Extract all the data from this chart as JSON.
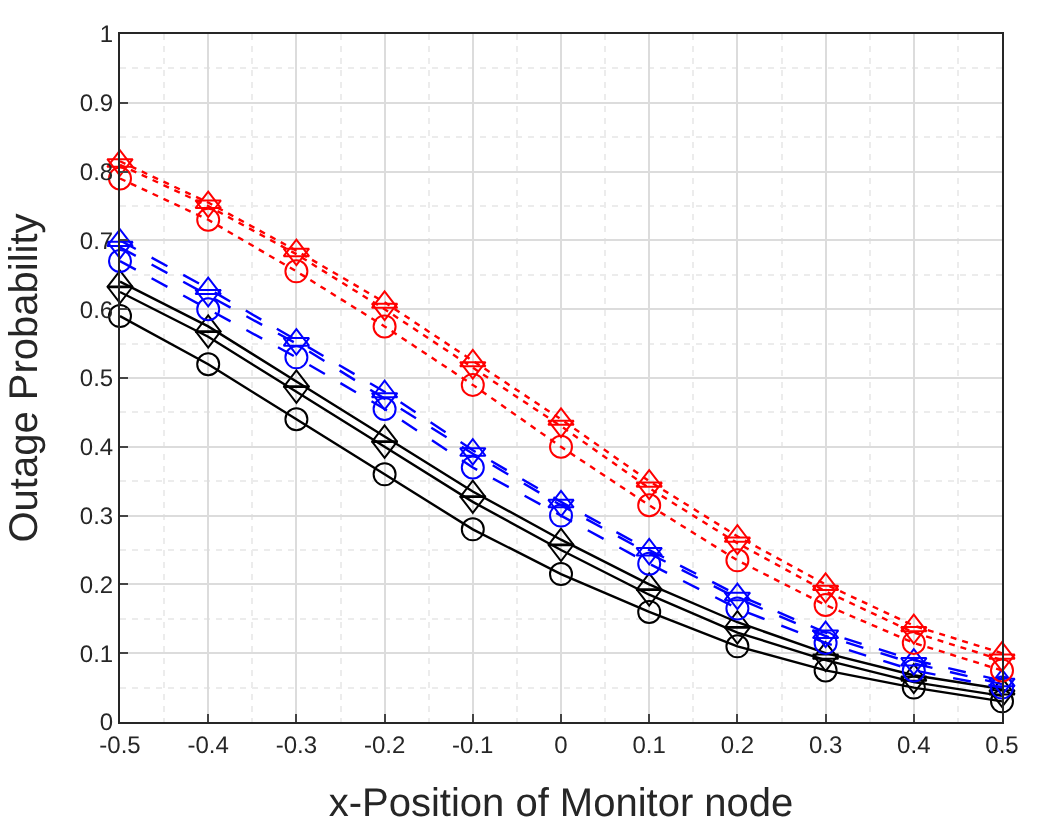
{
  "chart_data": {
    "type": "line",
    "xlabel": "x-Position of Monitor node",
    "ylabel": "Outage Probability",
    "x": [
      -0.5,
      -0.4,
      -0.3,
      -0.2,
      -0.1,
      0,
      0.1,
      0.2,
      0.3,
      0.4,
      0.5
    ],
    "xlim": [
      -0.5,
      0.5
    ],
    "xticks": [
      -0.5,
      -0.4,
      -0.3,
      -0.2,
      -0.1,
      0,
      0.1,
      0.2,
      0.3,
      0.4,
      0.5
    ],
    "ylim": [
      0,
      1
    ],
    "yticks": [
      0,
      0.1,
      0.2,
      0.3,
      0.4,
      0.5,
      0.6,
      0.7,
      0.8,
      0.9,
      1
    ],
    "grid": true,
    "series": [
      {
        "color": "#000000",
        "line_style": "solid",
        "marker": "circle",
        "values": [
          0.59,
          0.52,
          0.44,
          0.36,
          0.28,
          0.215,
          0.16,
          0.11,
          0.075,
          0.05,
          0.03
        ]
      },
      {
        "color": "#000000",
        "line_style": "solid",
        "marker": "triangle",
        "values": [
          0.64,
          0.575,
          0.495,
          0.415,
          0.335,
          0.265,
          0.2,
          0.145,
          0.1,
          0.068,
          0.048
        ]
      },
      {
        "color": "#000000",
        "line_style": "solid",
        "marker": "triangle-down",
        "values": [
          0.625,
          0.56,
          0.48,
          0.4,
          0.32,
          0.25,
          0.185,
          0.13,
          0.09,
          0.058,
          0.038
        ]
      },
      {
        "color": "#0000ff",
        "line_style": "dashed",
        "marker": "circle",
        "values": [
          0.67,
          0.6,
          0.53,
          0.455,
          0.37,
          0.3,
          0.23,
          0.165,
          0.115,
          0.075,
          0.05
        ]
      },
      {
        "color": "#0000ff",
        "line_style": "dashed",
        "marker": "triangle",
        "values": [
          0.7,
          0.63,
          0.555,
          0.48,
          0.395,
          0.32,
          0.25,
          0.185,
          0.13,
          0.09,
          0.06
        ]
      },
      {
        "color": "#0000ff",
        "line_style": "dashed",
        "marker": "triangle-down",
        "values": [
          0.69,
          0.62,
          0.55,
          0.47,
          0.39,
          0.315,
          0.245,
          0.18,
          0.125,
          0.085,
          0.055
        ]
      },
      {
        "color": "#ff0000",
        "line_style": "dotted",
        "marker": "circle",
        "values": [
          0.79,
          0.73,
          0.655,
          0.575,
          0.49,
          0.4,
          0.315,
          0.235,
          0.17,
          0.115,
          0.075
        ]
      },
      {
        "color": "#ff0000",
        "line_style": "dotted",
        "marker": "triangle",
        "values": [
          0.815,
          0.755,
          0.685,
          0.61,
          0.525,
          0.44,
          0.35,
          0.27,
          0.2,
          0.14,
          0.1
        ]
      },
      {
        "color": "#ff0000",
        "line_style": "dotted",
        "marker": "triangle-down",
        "values": [
          0.81,
          0.75,
          0.68,
          0.6,
          0.515,
          0.43,
          0.34,
          0.26,
          0.19,
          0.13,
          0.09
        ]
      }
    ]
  }
}
